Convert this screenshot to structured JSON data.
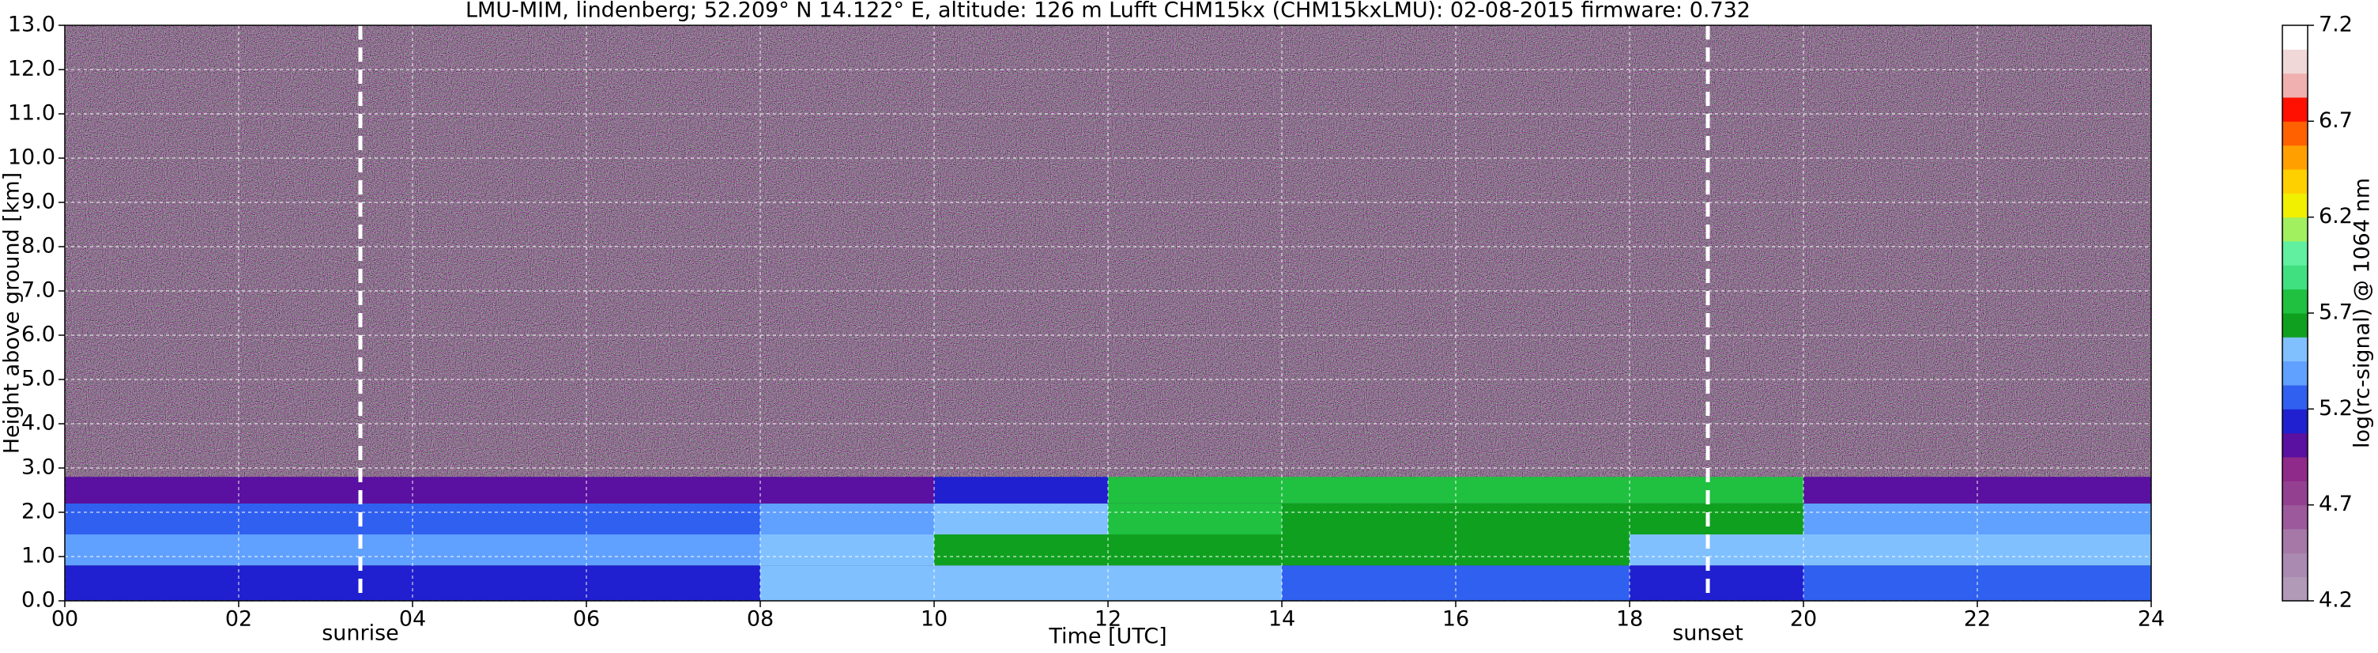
{
  "chart_data": {
    "type": "heatmap",
    "title": "LMU-MIM, lindenberg; 52.209° N 14.122° E, altitude: 126 m    Lufft CHM15kx (CHM15kxLMU): 02-08-2015    firmware: 0.732",
    "xlabel": "Time [UTC]",
    "ylabel": "Height above ground [km]",
    "colorbar_label": "log(rc-signal) @ 1064 nm",
    "x_edges": [
      0,
      2,
      4,
      6,
      8,
      10,
      12,
      14,
      16,
      18,
      20,
      22,
      24
    ],
    "y_edges": [
      0,
      0.8,
      1.5,
      2.2,
      2.8,
      13
    ],
    "z": [
      [
        5.15,
        5.15,
        5.15,
        5.15,
        5.5,
        5.55,
        5.5,
        5.2,
        5.2,
        5.1,
        5.25,
        5.3
      ],
      [
        5.4,
        5.4,
        5.4,
        5.4,
        5.45,
        5.6,
        5.6,
        5.6,
        5.6,
        5.55,
        5.5,
        5.5
      ],
      [
        5.25,
        5.25,
        5.25,
        5.3,
        5.35,
        5.55,
        5.7,
        5.6,
        5.6,
        5.6,
        5.4,
        5.4
      ],
      [
        5.0,
        5.0,
        5.0,
        5.0,
        5.0,
        5.1,
        5.8,
        5.8,
        5.8,
        5.75,
        5.0,
        5.0
      ],
      [
        null,
        null,
        null,
        null,
        null,
        null,
        null,
        null,
        null,
        null,
        null,
        null
      ]
    ],
    "xlim": [
      0,
      24
    ],
    "ylim": [
      0,
      13
    ],
    "xticks": [
      {
        "value": 0,
        "label": "00"
      },
      {
        "value": 2,
        "label": "02"
      },
      {
        "value": 4,
        "label": "04"
      },
      {
        "value": 6,
        "label": "06"
      },
      {
        "value": 8,
        "label": "08"
      },
      {
        "value": 10,
        "label": "10"
      },
      {
        "value": 12,
        "label": "12"
      },
      {
        "value": 14,
        "label": "14"
      },
      {
        "value": 16,
        "label": "16"
      },
      {
        "value": 18,
        "label": "18"
      },
      {
        "value": 20,
        "label": "20"
      },
      {
        "value": 22,
        "label": "22"
      },
      {
        "value": 24,
        "label": "24"
      }
    ],
    "yticks": [
      {
        "value": 0,
        "label": "0.0"
      },
      {
        "value": 1,
        "label": "1.0"
      },
      {
        "value": 2,
        "label": "2.0"
      },
      {
        "value": 3,
        "label": "3.0"
      },
      {
        "value": 4,
        "label": "4.0"
      },
      {
        "value": 5,
        "label": "5.0"
      },
      {
        "value": 6,
        "label": "6.0"
      },
      {
        "value": 7,
        "label": "7.0"
      },
      {
        "value": 8,
        "label": "8.0"
      },
      {
        "value": 9,
        "label": "9.0"
      },
      {
        "value": 10,
        "label": "10.0"
      },
      {
        "value": 11,
        "label": "11.0"
      },
      {
        "value": 12,
        "label": "12.0"
      },
      {
        "value": 13,
        "label": "13.0"
      }
    ],
    "clim": [
      4.2,
      7.2
    ],
    "cticks": [
      4.2,
      4.7,
      5.2,
      5.7,
      6.2,
      6.7,
      7.2
    ],
    "colormap": [
      "#b09ab8",
      "#aa8ab0",
      "#a678a8",
      "#9c5a9c",
      "#944090",
      "#902a8a",
      "#5a10a0",
      "#2020d0",
      "#3060f0",
      "#60a0ff",
      "#80c0ff",
      "#10a020",
      "#20c040",
      "#40e080",
      "#60f0a0",
      "#a0f060",
      "#f0f000",
      "#ffd000",
      "#ffa000",
      "#ff6000",
      "#ff1000",
      "#f0b0b0",
      "#f0d8d8",
      "#ffffff"
    ],
    "grid": true,
    "annotations": [
      {
        "x": 3.4,
        "text": "sunrise"
      },
      {
        "x": 18.9,
        "text": "sunset"
      }
    ]
  }
}
